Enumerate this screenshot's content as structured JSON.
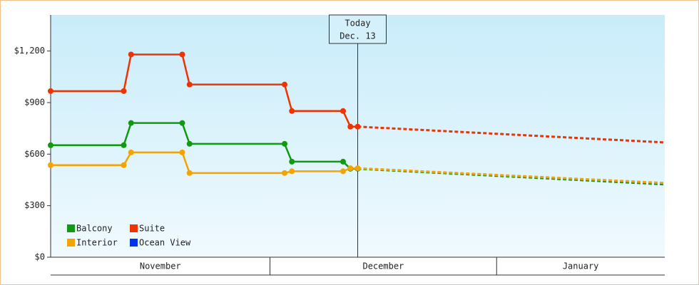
{
  "chart_data": {
    "type": "line",
    "x": [
      0,
      10,
      11,
      18,
      19,
      32,
      33,
      40,
      41,
      42,
      84
    ],
    "xlim": [
      0,
      84
    ],
    "x_bands": [
      {
        "label": "November",
        "from": 0,
        "to": 30
      },
      {
        "label": "December",
        "from": 30,
        "to": 61
      },
      {
        "label": "January",
        "from": 61,
        "to": 84
      }
    ],
    "dashed_from_index": 9,
    "ylim": [
      0,
      1410
    ],
    "yticks": [
      {
        "value": 0,
        "label": "$0"
      },
      {
        "value": 300,
        "label": "$300"
      },
      {
        "value": 600,
        "label": "$600"
      },
      {
        "value": 900,
        "label": "$900"
      },
      {
        "value": 1200,
        "label": "$1,200"
      }
    ],
    "annotation": {
      "x": 42,
      "lines": [
        "Today",
        "Dec. 13"
      ]
    },
    "series": [
      {
        "name": "Balcony",
        "color": "#119911",
        "values": [
          652,
          652,
          781,
          781,
          660,
          660,
          556,
          556,
          515,
          515,
          424
        ]
      },
      {
        "name": "Suite",
        "color": "#ee3300",
        "values": [
          967,
          967,
          1180,
          1180,
          1005,
          1005,
          851,
          851,
          760,
          760,
          668
        ]
      },
      {
        "name": "Interior",
        "color": "#f5a300",
        "values": [
          536,
          536,
          610,
          610,
          490,
          490,
          500,
          500,
          518,
          518,
          432
        ]
      },
      {
        "name": "Ocean View",
        "color": "#0033ee",
        "values": [
          null,
          null,
          null,
          null,
          null,
          null,
          null,
          null,
          null,
          null,
          null
        ]
      }
    ]
  }
}
